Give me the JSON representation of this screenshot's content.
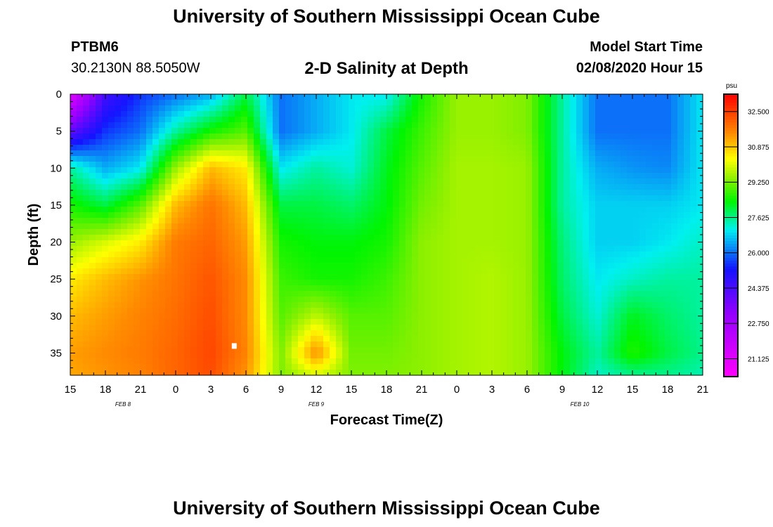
{
  "header": {
    "title": "University of Southern Mississippi Ocean Cube",
    "station_id": "PTBM6",
    "station_coords": "30.2130N 88.5050W",
    "subtitle": "2-D Salinity at Depth",
    "model_start_label": "Model Start Time",
    "model_start_value": "02/08/2020 Hour 15"
  },
  "footer": {
    "title": "University of Southern Mississippi Ocean Cube"
  },
  "chart_data": {
    "type": "heatmap",
    "title": "2-D Salinity at Depth",
    "xlabel": "Forecast Time(Z)",
    "ylabel": "Depth (ft)",
    "x_range_hours": [
      0,
      54
    ],
    "y_range": [
      0,
      38
    ],
    "x_tick_labels": [
      "15",
      "18",
      "21",
      "0",
      "3",
      "6",
      "9",
      "12",
      "15",
      "18",
      "21",
      "0",
      "3",
      "6",
      "9",
      "12",
      "15",
      "18",
      "21"
    ],
    "y_ticks": [
      0,
      5,
      10,
      15,
      20,
      25,
      30,
      35
    ],
    "date_labels": [
      {
        "text": "FEB 8",
        "hour": 4.5
      },
      {
        "text": "FEB 9",
        "hour": 21
      },
      {
        "text": "FEB 10",
        "hour": 43.5
      }
    ],
    "colorbar": {
      "unit": "psu",
      "ticks": [
        "32.500",
        "30.875",
        "29.250",
        "27.625",
        "26.000",
        "24.375",
        "22.750",
        "21.125"
      ],
      "min": 20.3,
      "max": 33.3
    },
    "grid_x_hours": [
      0,
      3,
      6,
      9,
      12,
      15,
      18,
      21,
      24,
      27,
      30,
      33,
      36,
      39,
      42,
      45,
      48,
      51,
      54
    ],
    "grid_y_depths": [
      0,
      5,
      10,
      15,
      20,
      25,
      30,
      35,
      38
    ],
    "salinity_grid_psu": [
      [
        21.0,
        24.5,
        25.5,
        26.0,
        26.5,
        28.0,
        26.0,
        26.5,
        27.0,
        27.0,
        28.5,
        29.5,
        29.5,
        29.3,
        27.5,
        26.0,
        26.0,
        26.0,
        27.0
      ],
      [
        24.0,
        25.5,
        26.0,
        27.5,
        28.5,
        29.0,
        26.0,
        26.5,
        27.0,
        28.0,
        28.8,
        29.5,
        29.5,
        29.3,
        27.5,
        26.0,
        26.0,
        26.0,
        27.0
      ],
      [
        27.5,
        26.5,
        27.0,
        29.5,
        31.0,
        30.5,
        27.0,
        27.5,
        27.2,
        28.2,
        29.0,
        29.6,
        29.6,
        29.5,
        27.5,
        26.5,
        26.3,
        26.2,
        27.0
      ],
      [
        28.5,
        28.0,
        29.0,
        31.0,
        31.8,
        31.0,
        28.0,
        28.0,
        27.8,
        28.3,
        29.2,
        29.6,
        29.6,
        29.5,
        27.5,
        26.8,
        26.8,
        26.8,
        27.0
      ],
      [
        29.5,
        30.0,
        30.5,
        31.7,
        32.0,
        31.3,
        28.5,
        28.3,
        28.3,
        28.5,
        29.4,
        29.6,
        29.6,
        29.5,
        27.7,
        26.8,
        26.8,
        27.0,
        27.3
      ],
      [
        30.5,
        31.0,
        31.4,
        31.8,
        32.2,
        31.5,
        28.8,
        28.5,
        28.5,
        28.8,
        29.4,
        29.6,
        29.7,
        29.5,
        27.8,
        27.0,
        27.3,
        27.5,
        27.5
      ],
      [
        31.0,
        31.3,
        31.6,
        31.9,
        32.3,
        31.5,
        29.0,
        29.8,
        29.0,
        29.0,
        29.4,
        29.6,
        29.7,
        29.5,
        28.0,
        27.2,
        28.2,
        27.8,
        27.5
      ],
      [
        31.3,
        31.5,
        31.7,
        32.0,
        32.4,
        31.6,
        29.3,
        31.5,
        29.2,
        29.2,
        29.4,
        29.6,
        29.7,
        29.5,
        28.3,
        27.5,
        28.6,
        28.0,
        27.6
      ],
      [
        31.2,
        31.4,
        31.6,
        32.0,
        32.3,
        31.4,
        29.3,
        30.0,
        29.3,
        29.3,
        29.4,
        29.6,
        29.7,
        29.5,
        28.3,
        27.3,
        27.6,
        27.6,
        27.4
      ]
    ],
    "marker": {
      "hour": 14.0,
      "depth": 34.0
    }
  }
}
